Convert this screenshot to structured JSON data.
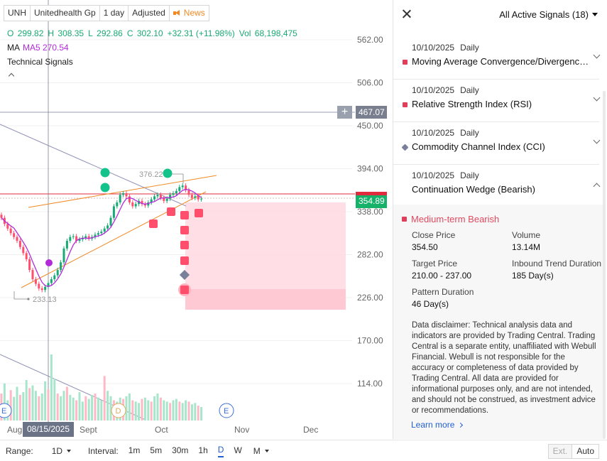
{
  "toolbar": {
    "symbol": "UNH",
    "company": "Unitedhealth Gp",
    "period": "1 day",
    "adjust": "Adjusted",
    "news": "News"
  },
  "ohlc": {
    "open_label": "O",
    "open": "299.82",
    "high_label": "H",
    "high": "308.35",
    "low_label": "L",
    "low": "292.86",
    "close_label": "C",
    "close": "302.10",
    "change": "+32.31 (+11.98%)",
    "vol_label": "Vol",
    "vol": "68,198,475"
  },
  "ma": {
    "label": "MA",
    "ma5": "MA5 270.54"
  },
  "technical_signals_label": "Technical Signals",
  "price_axis": [
    "562.00",
    "506.00",
    "450.00",
    "394.00",
    "338.00",
    "282.00",
    "226.00",
    "170.00",
    "114.00"
  ],
  "time_axis": [
    "Aug",
    "Sept",
    "Oct",
    "Nov",
    "Dec"
  ],
  "chart_labels": {
    "high_marker": "376.22",
    "low_marker": "233.13",
    "horizontal_line_price": "467.07",
    "current_price": "354.89",
    "crosshair_date": "08/15/2025",
    "plus": "+"
  },
  "event_markers": {
    "earnings": "E",
    "dividend": "D"
  },
  "colors": {
    "up": "#19a974",
    "down": "#ff4f6d",
    "ma5": "#b12bd9",
    "wedge": "#f08a24",
    "target_zone": "#ffd7de",
    "accent": "#1f5fd1"
  },
  "bottom_bar": {
    "range_label": "Range:",
    "range_value": "1D",
    "interval_label": "Interval:",
    "intervals": [
      "1m",
      "5m",
      "30m",
      "1h",
      "D",
      "W",
      "M"
    ],
    "active_interval": "D",
    "ext": "Ext.",
    "auto": "Auto"
  },
  "panel": {
    "filter": "All Active Signals (18)",
    "signals": [
      {
        "date": "10/10/2025",
        "freq": "Daily",
        "title": "Moving Average Convergence/Divergence (MACD)",
        "marker": "square"
      },
      {
        "date": "10/10/2025",
        "freq": "Daily",
        "title": "Relative Strength Index (RSI)",
        "marker": "square"
      },
      {
        "date": "10/10/2025",
        "freq": "Daily",
        "title": "Commodity Channel Index (CCI)",
        "marker": "diamond"
      },
      {
        "date": "10/10/2025",
        "freq": "Daily",
        "title": "Continuation Wedge (Bearish)",
        "marker": "none"
      }
    ],
    "detail": {
      "outlook": "Medium-term Bearish",
      "close_price_label": "Close Price",
      "close_price": "354.50",
      "volume_label": "Volume",
      "volume": "13.14M",
      "target_price_label": "Target Price",
      "target_price": "210.00 - 237.00",
      "trend_label": "Inbound Trend Duration",
      "trend": "185 Day(s)",
      "pattern_label": "Pattern Duration",
      "pattern": "46 Day(s)",
      "disclaimer": "Data disclaimer: Technical analysis data and indicators are provided by Trading Central. Trading Central is a separate entity, unaffiliated with Webull Financial. Webull is not responsible for the accuracy or completeness of data provided by Trading Central. All data are provided for informational purposes only, and are not intended, and should not be construed, as investment advice or recommendations.",
      "learn_more": "Learn more"
    }
  }
}
